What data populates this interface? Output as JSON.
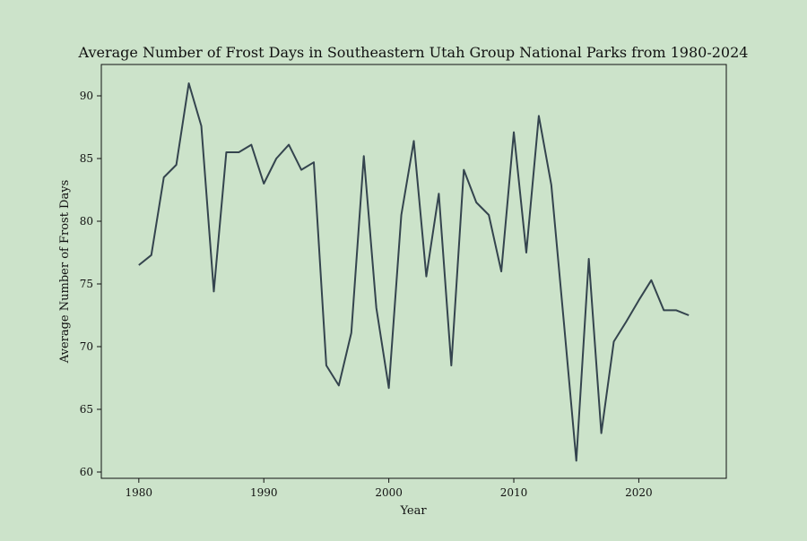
{
  "chart_data": {
    "type": "line",
    "title": "Average Number of Frost Days in Southeastern Utah Group National Parks from 1980-2024",
    "xlabel": "Year",
    "ylabel": "Average Number of Frost Days",
    "xlim": [
      1977,
      2027
    ],
    "ylim": [
      59.5,
      92.5
    ],
    "xticks": [
      1980,
      1990,
      2000,
      2010,
      2020
    ],
    "yticks": [
      60,
      65,
      70,
      75,
      80,
      85,
      90
    ],
    "grid": false,
    "legend": "none",
    "colors": {
      "line": "#34444e",
      "background": "#cce3ca",
      "axes": "#111111"
    },
    "series": [
      {
        "x": [
          1980,
          1981,
          1982,
          1983,
          1984,
          1985,
          1986,
          1987,
          1988,
          1989,
          1990,
          1991,
          1992,
          1993,
          1994,
          1995,
          1996,
          1997,
          1998,
          1999,
          2000,
          2001,
          2002,
          2003,
          2004,
          2005,
          2006,
          2007,
          2008,
          2009,
          2010,
          2011,
          2012,
          2013,
          2014,
          2015,
          2016,
          2017,
          2018,
          2019,
          2020,
          2021,
          2022,
          2023,
          2024
        ],
        "y": [
          76.5,
          77.3,
          83.5,
          84.5,
          91.0,
          87.6,
          74.4,
          85.5,
          85.5,
          86.1,
          83.0,
          85.0,
          86.1,
          84.1,
          84.7,
          68.5,
          66.9,
          71.1,
          85.2,
          73.1,
          66.7,
          80.5,
          86.4,
          75.6,
          82.2,
          68.5,
          84.1,
          81.5,
          80.5,
          76.0,
          87.1,
          77.5,
          88.4,
          82.9,
          72.0,
          60.9,
          77.0,
          63.1,
          70.4,
          72.0,
          73.7,
          75.3,
          72.9,
          72.9,
          72.5
        ]
      }
    ]
  }
}
